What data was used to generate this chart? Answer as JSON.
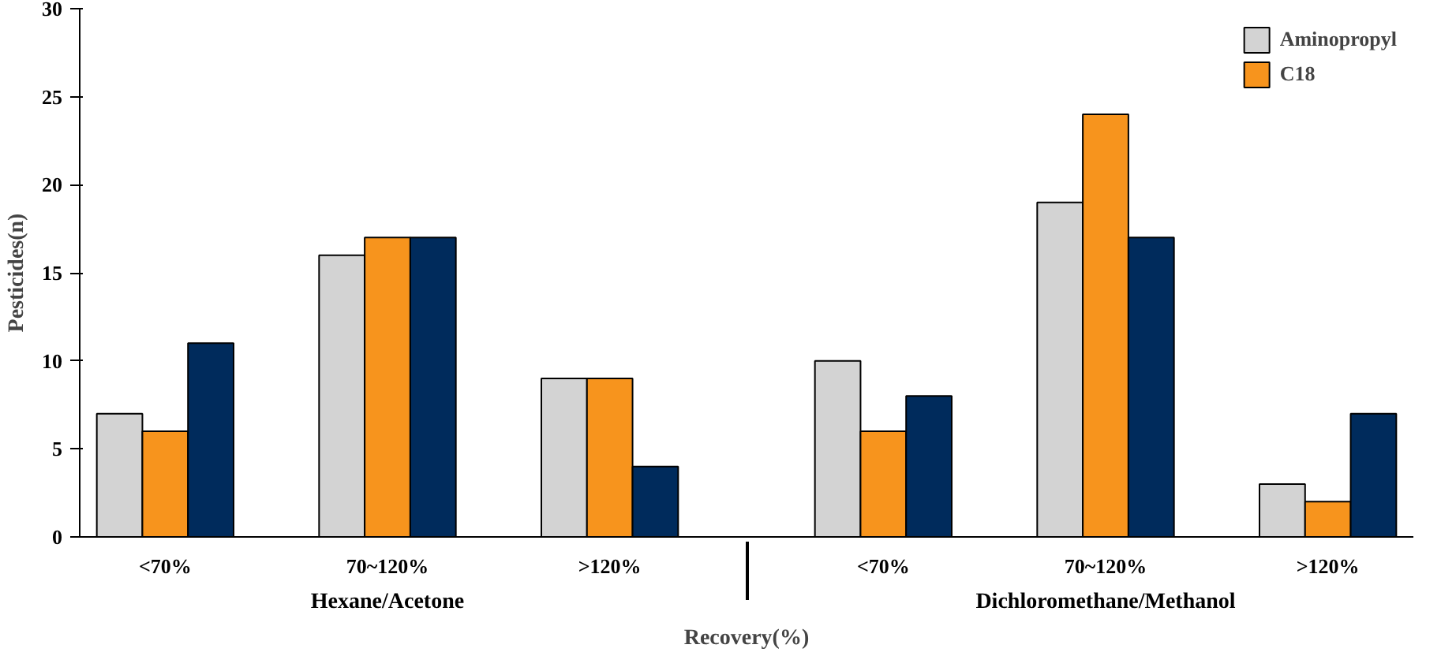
{
  "chart_data": {
    "type": "bar",
    "xlabel": "Recovery(%)",
    "ylabel": "Pesticides(n)",
    "categories": [
      "<70%",
      "70~120%",
      ">120%",
      "<70%",
      "70~120%",
      ">120%"
    ],
    "annotations": [
      "Hexane/Acetone",
      "Dichloromethane/Methanol"
    ],
    "series": [
      {
        "name": "Aminopropyl",
        "color": "#d3d3d3",
        "values": [
          7,
          16,
          9,
          10,
          19,
          3
        ]
      },
      {
        "name": "C18",
        "color": "#f7941d",
        "values": [
          6,
          17,
          9,
          6,
          24,
          2
        ]
      },
      {
        "color": "#002b5c",
        "values": [
          11,
          17,
          4,
          8,
          17,
          7
        ]
      }
    ],
    "ylim": [
      0,
      30
    ],
    "yticks": [
      0,
      5,
      10,
      15,
      20,
      25,
      30
    ],
    "grid": false,
    "legend": "top right"
  }
}
